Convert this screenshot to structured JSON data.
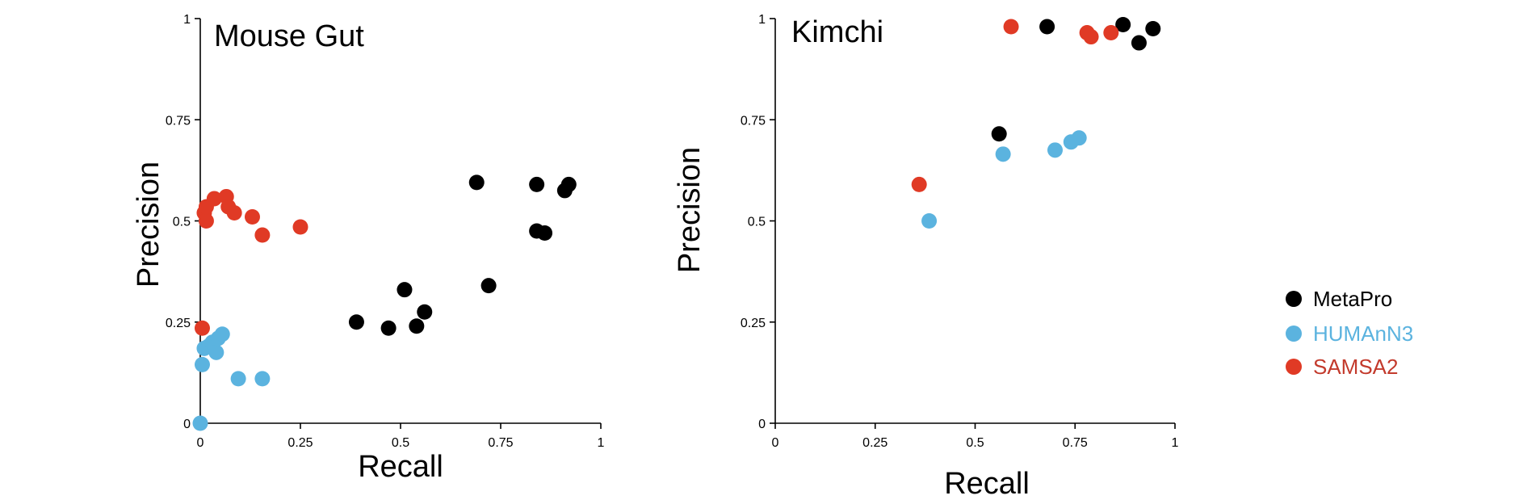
{
  "chart_data": [
    {
      "type": "scatter",
      "title": "Mouse Gut",
      "xlabel": "Recall",
      "ylabel": "Precision",
      "xlim": [
        0,
        1
      ],
      "ylim": [
        0,
        1
      ],
      "xticks": [
        "0",
        "0.25",
        "0.5",
        "0.75",
        "1"
      ],
      "yticks": [
        "0",
        "0.25",
        "0.5",
        "0.75",
        "1"
      ],
      "grid": false,
      "series": [
        {
          "name": "MetaPro",
          "color": "#000000",
          "points": [
            [
              0.39,
              0.25
            ],
            [
              0.47,
              0.235
            ],
            [
              0.51,
              0.33
            ],
            [
              0.54,
              0.24
            ],
            [
              0.56,
              0.275
            ],
            [
              0.69,
              0.595
            ],
            [
              0.72,
              0.34
            ],
            [
              0.84,
              0.59
            ],
            [
              0.84,
              0.475
            ],
            [
              0.86,
              0.47
            ],
            [
              0.91,
              0.575
            ],
            [
              0.92,
              0.59
            ]
          ]
        },
        {
          "name": "HUMAnN3",
          "color": "#5bb3df",
          "points": [
            [
              0.0,
              0.0
            ],
            [
              0.005,
              0.145
            ],
            [
              0.01,
              0.185
            ],
            [
              0.02,
              0.19
            ],
            [
              0.03,
              0.2
            ],
            [
              0.04,
              0.175
            ],
            [
              0.045,
              0.21
            ],
            [
              0.055,
              0.22
            ],
            [
              0.095,
              0.11
            ],
            [
              0.155,
              0.11
            ]
          ]
        },
        {
          "name": "SAMSA2",
          "color": "#e03a25",
          "points": [
            [
              0.005,
              0.235
            ],
            [
              0.01,
              0.52
            ],
            [
              0.015,
              0.5
            ],
            [
              0.015,
              0.535
            ],
            [
              0.035,
              0.555
            ],
            [
              0.065,
              0.56
            ],
            [
              0.07,
              0.535
            ],
            [
              0.085,
              0.52
            ],
            [
              0.13,
              0.51
            ],
            [
              0.155,
              0.465
            ],
            [
              0.25,
              0.485
            ]
          ]
        }
      ]
    },
    {
      "type": "scatter",
      "title": "Kimchi",
      "xlabel": "Recall",
      "ylabel": "Precision",
      "xlim": [
        0,
        1
      ],
      "ylim": [
        0,
        1
      ],
      "xticks": [
        "0",
        "0.25",
        "0.5",
        "0.75",
        "1"
      ],
      "yticks": [
        "0",
        "0.25",
        "0.5",
        "0.75",
        "1"
      ],
      "grid": false,
      "series": [
        {
          "name": "MetaPro",
          "color": "#000000",
          "points": [
            [
              0.56,
              0.715
            ],
            [
              0.68,
              0.98
            ],
            [
              0.87,
              0.985
            ],
            [
              0.91,
              0.94
            ],
            [
              0.945,
              0.975
            ]
          ]
        },
        {
          "name": "HUMAnN3",
          "color": "#5bb3df",
          "points": [
            [
              0.385,
              0.5
            ],
            [
              0.57,
              0.665
            ],
            [
              0.7,
              0.675
            ],
            [
              0.74,
              0.695
            ],
            [
              0.76,
              0.705
            ]
          ]
        },
        {
          "name": "SAMSA2",
          "color": "#e03a25",
          "points": [
            [
              0.36,
              0.59
            ],
            [
              0.59,
              0.98
            ],
            [
              0.78,
              0.965
            ],
            [
              0.79,
              0.955
            ],
            [
              0.84,
              0.965
            ]
          ]
        }
      ]
    }
  ],
  "legend": {
    "placement": "right",
    "items": [
      {
        "label": "MetaPro",
        "color": "#000000",
        "text_color": "#000000"
      },
      {
        "label": "HUMAnN3",
        "color": "#5bb3df",
        "text_color": "#5bb3df"
      },
      {
        "label": "SAMSA2",
        "color": "#e03a25",
        "text_color": "#c33a2c"
      }
    ]
  }
}
